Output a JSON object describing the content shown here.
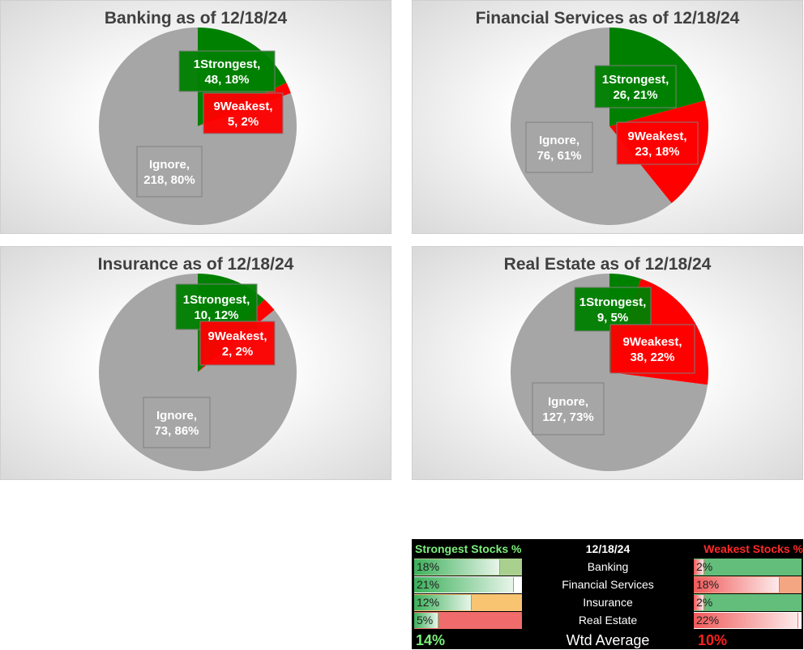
{
  "chart_data": [
    {
      "type": "pie",
      "title": "Banking as of 12/18/24",
      "slices": [
        {
          "name": "1Strongest",
          "value": 48,
          "pct": "18%",
          "color": "#008000"
        },
        {
          "name": "9Weakest",
          "value": 5,
          "pct": "2%",
          "color": "#ff0000"
        },
        {
          "name": "Ignore",
          "value": 218,
          "pct": "80%",
          "color": "#a6a6a6"
        }
      ],
      "labels": [
        "1Strongest,",
        "48, 18%",
        "9Weakest,",
        "5, 2%",
        "Ignore,",
        "218, 80%"
      ]
    },
    {
      "type": "pie",
      "title": "Financial Services as of 12/18/24",
      "slices": [
        {
          "name": "1Strongest",
          "value": 26,
          "pct": "21%",
          "color": "#008000"
        },
        {
          "name": "9Weakest",
          "value": 23,
          "pct": "18%",
          "color": "#ff0000"
        },
        {
          "name": "Ignore",
          "value": 76,
          "pct": "61%",
          "color": "#a6a6a6"
        }
      ],
      "labels": [
        "1Strongest,",
        "26, 21%",
        "9Weakest,",
        "23, 18%",
        "Ignore,",
        "76, 61%"
      ]
    },
    {
      "type": "pie",
      "title": "Insurance as of 12/18/24",
      "slices": [
        {
          "name": "1Strongest",
          "value": 10,
          "pct": "12%",
          "color": "#008000"
        },
        {
          "name": "9Weakest",
          "value": 2,
          "pct": "2%",
          "color": "#ff0000"
        },
        {
          "name": "Ignore",
          "value": 73,
          "pct": "86%",
          "color": "#a6a6a6"
        }
      ],
      "labels": [
        "1Strongest,",
        "10, 12%",
        "9Weakest,",
        "2, 2%",
        "Ignore,",
        "73, 86%"
      ]
    },
    {
      "type": "pie",
      "title": "Real Estate as of 12/18/24",
      "slices": [
        {
          "name": "1Strongest",
          "value": 9,
          "pct": "5%",
          "color": "#008000"
        },
        {
          "name": "9Weakest",
          "value": 38,
          "pct": "22%",
          "color": "#ff0000"
        },
        {
          "name": "Ignore",
          "value": 127,
          "pct": "73%",
          "color": "#a6a6a6"
        }
      ],
      "labels": [
        "1Strongest,",
        "9, 5%",
        "9Weakest,",
        "38, 22%",
        "Ignore,",
        "127, 73%"
      ]
    }
  ],
  "summary": {
    "header_left": "Strongest Stocks %",
    "header_mid": "12/18/24",
    "header_right": "Weakest Stocks %",
    "rows": [
      {
        "sector": "Banking",
        "strongest": "18%",
        "strongest_frac": 0.18,
        "weakest": "2%",
        "weakest_frac": 0.02
      },
      {
        "sector": "Financial Services",
        "strongest": "21%",
        "strongest_frac": 0.21,
        "weakest": "18%",
        "weakest_frac": 0.18
      },
      {
        "sector": "Insurance",
        "strongest": "12%",
        "strongest_frac": 0.12,
        "weakest": "2%",
        "weakest_frac": 0.02
      },
      {
        "sector": "Real Estate",
        "strongest": "5%",
        "strongest_frac": 0.05,
        "weakest": "22%",
        "weakest_frac": 0.22
      }
    ],
    "footer_left": "14%",
    "footer_mid": "Wtd Average",
    "footer_right": "10%",
    "colors": {
      "header_left": "#7cf07c",
      "header_right": "#ff2a2a",
      "footer_left": "#7cf07c",
      "footer_right": "#ff2020"
    }
  }
}
